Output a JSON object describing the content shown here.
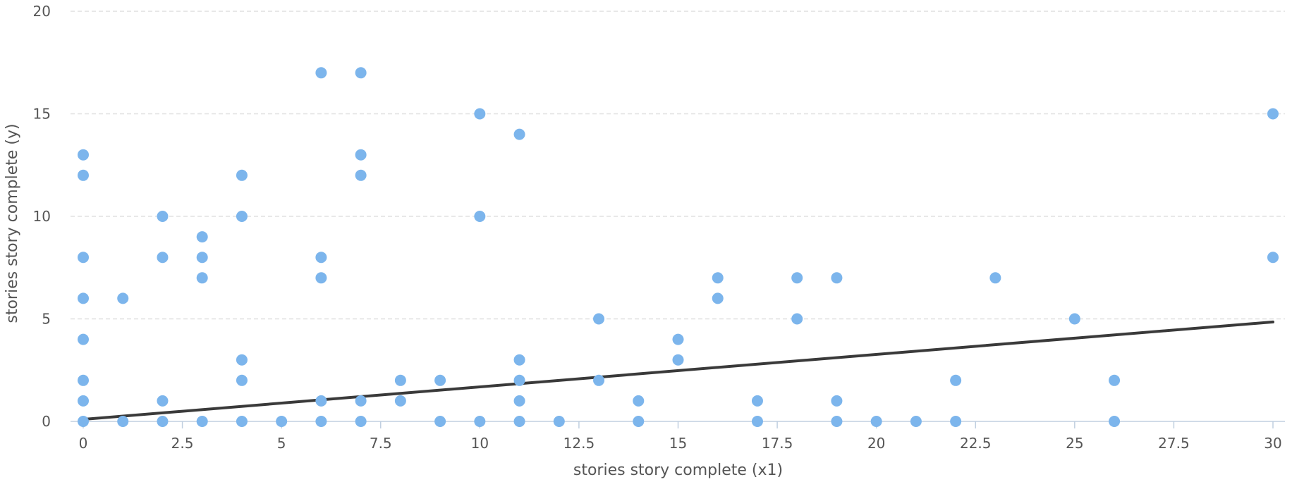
{
  "chart_data": {
    "type": "scatter",
    "title": "",
    "xlabel": "stories story complete (x1)",
    "ylabel": "stories story complete (y)",
    "xlim": [
      0,
      30
    ],
    "ylim": [
      0,
      20
    ],
    "x_ticks": [
      0,
      2.5,
      5,
      7.5,
      10,
      12.5,
      15,
      17.5,
      20,
      22.5,
      25,
      27.5,
      30
    ],
    "x_tick_labels": [
      "0",
      "2.5",
      "5",
      "7.5",
      "10",
      "12.5",
      "15",
      "17.5",
      "20",
      "22.5",
      "25",
      "27.5",
      "30"
    ],
    "y_ticks": [
      0,
      5,
      10,
      15,
      20
    ],
    "y_tick_labels": [
      "0",
      "5",
      "10",
      "15",
      "20"
    ],
    "grid": {
      "y": true,
      "x": false
    },
    "series": [
      {
        "kind": "points",
        "color": "#7cb5ec",
        "points": [
          [
            0,
            0
          ],
          [
            0,
            1
          ],
          [
            0,
            2
          ],
          [
            0,
            4
          ],
          [
            0,
            6
          ],
          [
            0,
            8
          ],
          [
            0,
            12
          ],
          [
            0,
            13
          ],
          [
            1,
            0
          ],
          [
            1,
            6
          ],
          [
            2,
            0
          ],
          [
            2,
            1
          ],
          [
            2,
            8
          ],
          [
            2,
            10
          ],
          [
            3,
            0
          ],
          [
            3,
            7
          ],
          [
            3,
            8
          ],
          [
            3,
            9
          ],
          [
            4,
            0
          ],
          [
            4,
            2
          ],
          [
            4,
            3
          ],
          [
            4,
            10
          ],
          [
            4,
            12
          ],
          [
            5,
            0
          ],
          [
            6,
            0
          ],
          [
            6,
            1
          ],
          [
            6,
            7
          ],
          [
            6,
            8
          ],
          [
            6,
            17
          ],
          [
            7,
            0
          ],
          [
            7,
            1
          ],
          [
            7,
            12
          ],
          [
            7,
            13
          ],
          [
            7,
            17
          ],
          [
            8,
            1
          ],
          [
            8,
            2
          ],
          [
            9,
            0
          ],
          [
            9,
            2
          ],
          [
            10,
            0
          ],
          [
            10,
            10
          ],
          [
            10,
            15
          ],
          [
            11,
            0
          ],
          [
            11,
            1
          ],
          [
            11,
            2
          ],
          [
            11,
            3
          ],
          [
            11,
            14
          ],
          [
            12,
            0
          ],
          [
            13,
            2
          ],
          [
            13,
            5
          ],
          [
            14,
            0
          ],
          [
            14,
            1
          ],
          [
            15,
            3
          ],
          [
            15,
            4
          ],
          [
            16,
            6
          ],
          [
            16,
            7
          ],
          [
            17,
            0
          ],
          [
            17,
            1
          ],
          [
            18,
            5
          ],
          [
            18,
            7
          ],
          [
            19,
            0
          ],
          [
            19,
            1
          ],
          [
            19,
            7
          ],
          [
            20,
            0
          ],
          [
            21,
            0
          ],
          [
            22,
            0
          ],
          [
            22,
            2
          ],
          [
            23,
            7
          ],
          [
            25,
            5
          ],
          [
            26,
            0
          ],
          [
            26,
            2
          ],
          [
            30,
            8
          ],
          [
            30,
            15
          ]
        ]
      },
      {
        "kind": "trend-line",
        "color": "#3a3a3a",
        "x": [
          0,
          30
        ],
        "y": [
          0.1,
          4.85
        ]
      }
    ]
  }
}
